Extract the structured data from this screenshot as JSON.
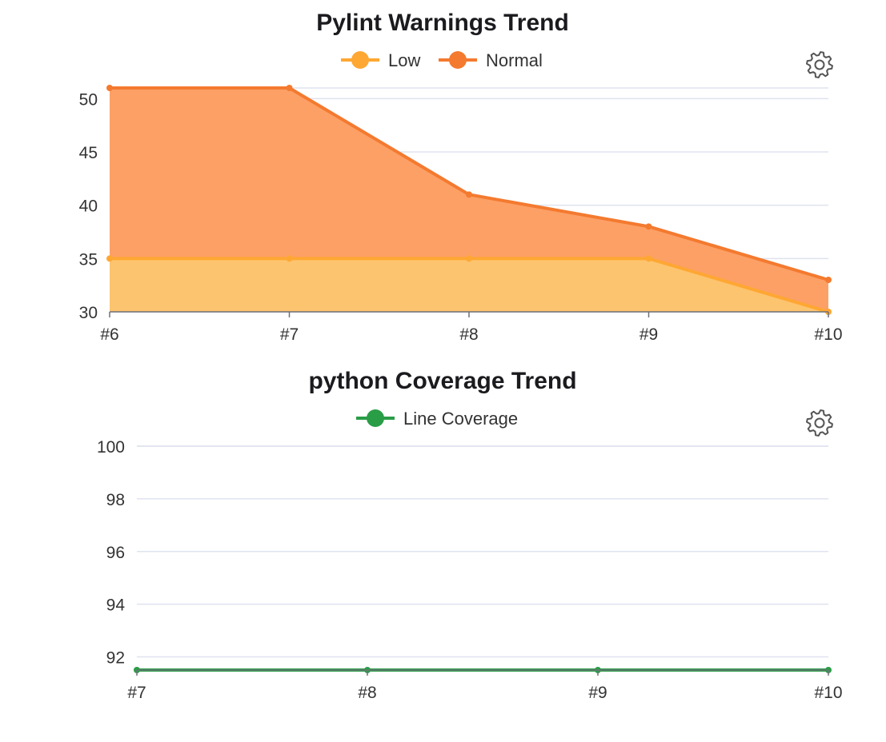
{
  "chart_data": [
    {
      "type": "area",
      "title": "Pylint Warnings Trend",
      "stacked": false,
      "categories": [
        "#6",
        "#7",
        "#8",
        "#9",
        "#10"
      ],
      "series": [
        {
          "name": "Low",
          "color": "#ffa733",
          "area_color": "#fcc46f",
          "values": [
            35,
            35,
            35,
            35,
            30
          ]
        },
        {
          "name": "Normal",
          "color": "#f47a2f",
          "area_color": "#fca066",
          "values": [
            51,
            51,
            41,
            38,
            33
          ]
        }
      ],
      "yticks": [
        30,
        35,
        40,
        45,
        50
      ],
      "ylim": [
        30,
        51
      ],
      "grid": true,
      "legend": "top-center",
      "settings_icon": "gear-icon"
    },
    {
      "type": "line",
      "title": "python Coverage Trend",
      "categories": [
        "#7",
        "#8",
        "#9",
        "#10"
      ],
      "series": [
        {
          "name": "Line Coverage",
          "color": "#2a9d47",
          "values": [
            91.5,
            91.5,
            91.5,
            91.5
          ]
        }
      ],
      "yticks": [
        92,
        94,
        96,
        98,
        100
      ],
      "ylim": [
        91.5,
        100
      ],
      "grid": true,
      "legend": "top-center",
      "settings_icon": "gear-icon"
    }
  ]
}
